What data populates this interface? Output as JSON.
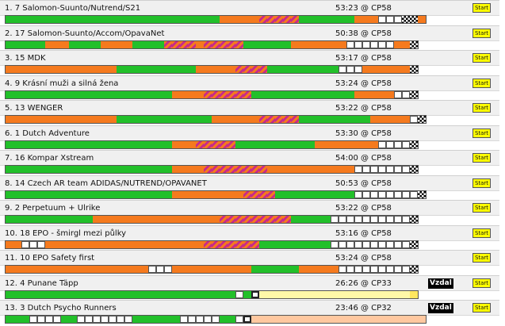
{
  "teams": [
    {
      "name": "1. 7 Salomon-Suunto/Nutrend/S21",
      "time": "53:23 @ CP58",
      "start": "Start",
      "track": "gggggggggggggggggggggggggggooooosssssgggggggooowwwffo"
    },
    {
      "name": "2. 17 Salomon-Suunto/Accom/OpavaNet",
      "time": "50:38 @ CP58",
      "start": "Start",
      "track": "gggggoooggggooooggggssssosssssggggggooooooowwwwwwoof"
    },
    {
      "name": "3. 15 MDK",
      "time": "53:17 @ CP58",
      "start": "Start",
      "track": "ooooooooooooooggggggggggooooossssgggggggggwwwoooooof"
    },
    {
      "name": "4. 9 Krásní muži a silná žena",
      "time": "53:24 @ CP58",
      "start": "Start",
      "track": "gggggggggggggggggggggoooossssssgggggggggggggooooowwf"
    },
    {
      "name": "5. 13 WENGER",
      "time": "53:22 @ CP58",
      "start": "Start",
      "track": "ooooooooooooooggggggggggggoooooosssssgggggggggooooowf"
    },
    {
      "name": "6. 1 Dutch Adventure",
      "time": "53:30 @ CP58",
      "start": "Start",
      "track": "gggggggggggggggggggggooosssssggggggggggoooooooowwwwf"
    },
    {
      "name": "7. 16 Kompar Xstream",
      "time": "54:00 @ CP58",
      "start": "Start",
      "track": "gggggggggggggggggggggoooossssssssooooooooooowwwwwwwf"
    },
    {
      "name": "8. 14 Czech AR team ADIDAS/NUTREND/OPAVANET",
      "time": "50:53 @ CP58",
      "start": "Start",
      "track": "gggggggggggggggggggggooooooooossssggggggggggwwwwwwwwf"
    },
    {
      "name": "9. 2 Perpetuum + Ulrike",
      "time": "53:22 @ CP58",
      "start": "Start",
      "track": "gggggggggggoooooooooooooooosssssssssgggggwwwwwwwwwwf"
    },
    {
      "name": "10. 18 EPO - šmirgl mezi půlky",
      "time": "53:16 @ CP58",
      "start": "Start",
      "track": "oowwwoooooooooooooooooooosssssssgggggggggwwwwwwwwwwf"
    },
    {
      "name": "11. 10 EPO Safety first",
      "time": "53:24 @ CP58",
      "start": "Start",
      "track": "oooooooooooooooooowwwooooooooooggggggooooowwwwwwwwwf"
    },
    {
      "name": "12. 4 Punane Täpp",
      "time": "26:26 @ CP33",
      "start": "Start",
      "vzdal": "Vzdal",
      "track": "gggggggggggggggggggggggggggggwgkyyyyyyyyyyyyyyyyyyyy2"
    },
    {
      "name": "13. 3 Dutch Psycho Runners",
      "time": "23:46 @ CP32",
      "start": "Start",
      "vzdal": "Vzdal",
      "track": "gggwwwwggwwwwwwwggggggwwwwwggwkpppppppppppppppppppppp"
    }
  ]
}
